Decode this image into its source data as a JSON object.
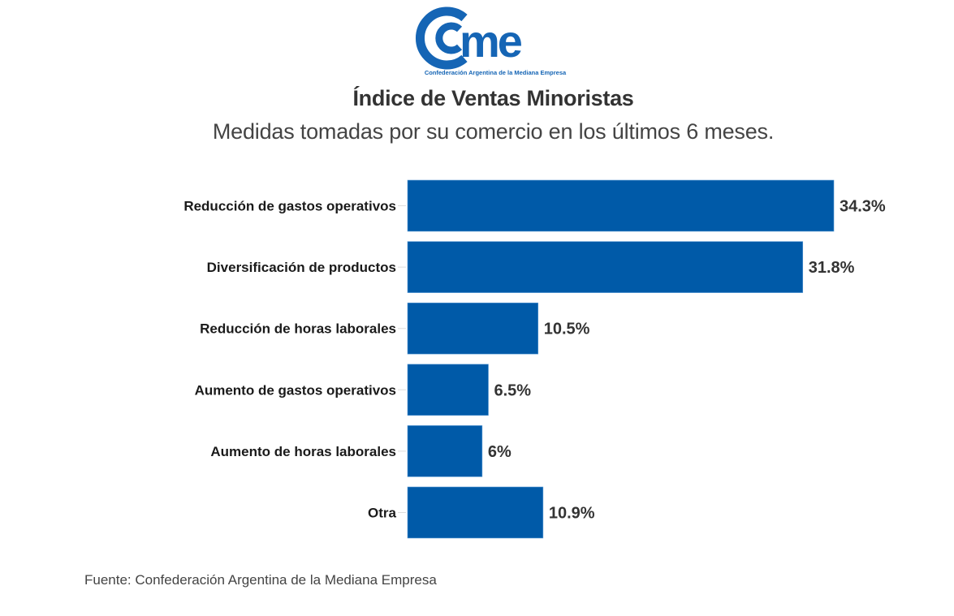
{
  "header": {
    "logo_text": "came",
    "logo_subtitle": "Confederación Argentina de la Mediana Empresa",
    "brand_color": "#1565b5"
  },
  "chart_data": {
    "type": "bar",
    "orientation": "horizontal",
    "title": "Índice de Ventas Minoristas",
    "subtitle": "Medidas tomadas por su comercio en los últimos 6 meses.",
    "categories": [
      "Reducción de gastos operativos",
      "Diversificación de productos",
      "Reducción de horas laborales",
      "Aumento de gastos operativos",
      "Aumento de horas laborales",
      "Otra"
    ],
    "values": [
      34.3,
      31.8,
      10.5,
      6.5,
      6,
      10.9
    ],
    "value_labels": [
      "34.3%",
      "31.8%",
      "10.5%",
      "6.5%",
      "6%",
      "10.9%"
    ],
    "unit": "%",
    "xlabel": "",
    "ylabel": "",
    "xlim": [
      0,
      34.3
    ],
    "grid": false,
    "bar_color": "#005aa8",
    "source": "Fuente: Confederación Argentina de la Mediana Empresa"
  }
}
